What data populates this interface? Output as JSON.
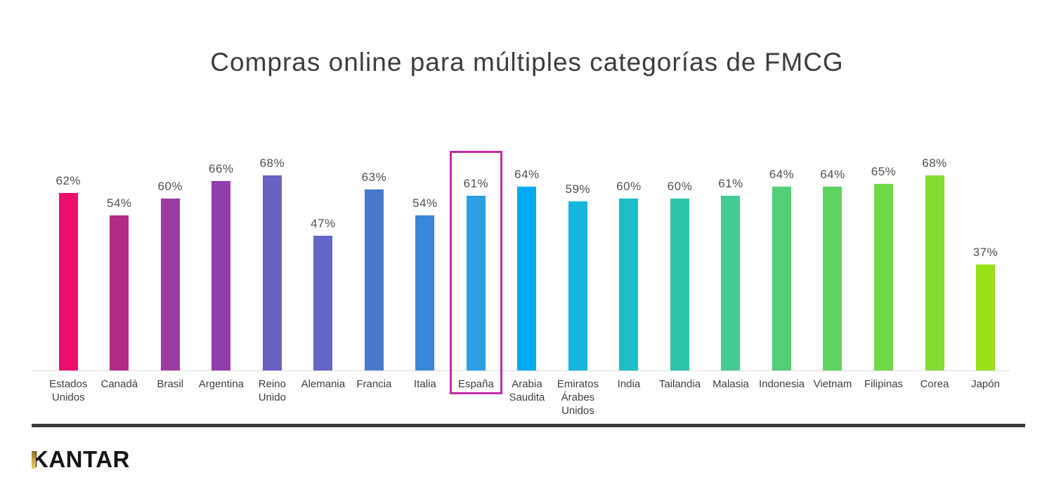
{
  "brand": {
    "logo_text": "KANTAR",
    "logo_accent_color": "#C7A33C"
  },
  "chart_data": {
    "type": "bar",
    "title": "Compras online para múltiples categorías de FMCG",
    "categories": [
      "Estados Unidos",
      "Canadá",
      "Brasil",
      "Argentina",
      "Reino Unido",
      "Alemania",
      "Francia",
      "Italia",
      "España",
      "Arabia Saudita",
      "Emiratos Árabes Unidos",
      "India",
      "Tailandia",
      "Malasia",
      "Indonesia",
      "Vietnam",
      "Filipinas",
      "Corea",
      "Japón"
    ],
    "values": [
      62,
      54,
      60,
      66,
      68,
      47,
      63,
      54,
      61,
      64,
      59,
      60,
      60,
      61,
      64,
      64,
      65,
      68,
      37
    ],
    "value_suffix": "%",
    "bar_colors": [
      "#EC0E6F",
      "#B12C88",
      "#9C3BA2",
      "#8F3EAC",
      "#6A60C0",
      "#6366C4",
      "#4679CE",
      "#3788D9",
      "#2B9EE4",
      "#00ABF0",
      "#15B5DC",
      "#1FBDC8",
      "#2EC3AB",
      "#45CA92",
      "#52CF78",
      "#5FD35F",
      "#70D748",
      "#84DC30",
      "#98E018"
    ],
    "highlighted_category": "España",
    "highlight_color": "#C32BA2",
    "ylim": [
      0,
      68
    ],
    "grid": false,
    "legend": false,
    "xlabel": "",
    "ylabel": ""
  }
}
